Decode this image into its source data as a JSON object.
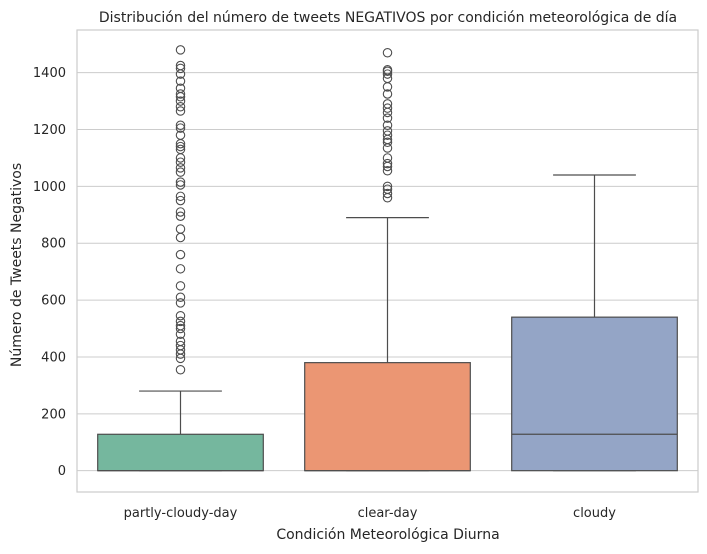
{
  "chart_data": {
    "type": "box",
    "title": "Distribución del número de tweets NEGATIVOS por condición meteorológica de día",
    "xlabel": "Condición Meteorológica Diurna",
    "ylabel": "Número de Tweets Negativos",
    "ylim": [
      -75,
      1550
    ],
    "yticks": [
      0,
      200,
      400,
      600,
      800,
      1000,
      1200,
      1400
    ],
    "grid": true,
    "categories": [
      "partly-cloudy-day",
      "clear-day",
      "cloudy"
    ],
    "colors": [
      "#75b79e",
      "#eb9673",
      "#94a5c6"
    ],
    "boxes": [
      {
        "category": "partly-cloudy-day",
        "whisker_low": 0,
        "q1": 0,
        "median": 0,
        "q3": 128,
        "whisker_high": 280,
        "outliers": [
          355,
          395,
          410,
          425,
          440,
          455,
          480,
          500,
          510,
          525,
          545,
          590,
          610,
          650,
          710,
          760,
          820,
          850,
          895,
          910,
          950,
          965,
          1005,
          1015,
          1050,
          1065,
          1085,
          1100,
          1130,
          1140,
          1150,
          1180,
          1205,
          1215,
          1265,
          1280,
          1300,
          1315,
          1325,
          1345,
          1370,
          1395,
          1415,
          1425,
          1480
        ]
      },
      {
        "category": "clear-day",
        "whisker_low": 0,
        "q1": 0,
        "median": 0,
        "q3": 380,
        "whisker_high": 890,
        "outliers": [
          960,
          975,
          990,
          1000,
          1055,
          1070,
          1080,
          1100,
          1135,
          1155,
          1165,
          1180,
          1195,
          1215,
          1240,
          1260,
          1275,
          1290,
          1325,
          1350,
          1380,
          1395,
          1405,
          1410,
          1470
        ]
      },
      {
        "category": "cloudy",
        "whisker_low": 0,
        "q1": 0,
        "median": 128,
        "q3": 540,
        "whisker_high": 1040,
        "outliers": []
      }
    ]
  }
}
